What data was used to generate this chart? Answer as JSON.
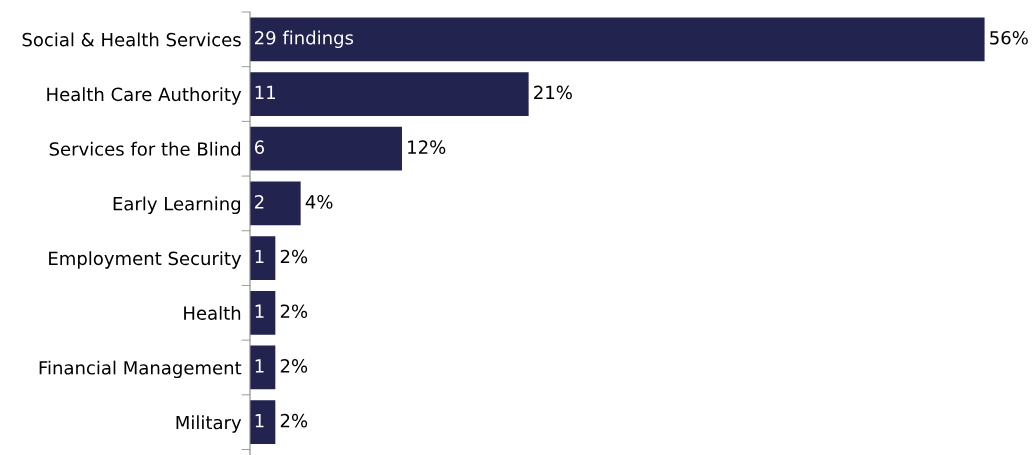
{
  "chart_data": {
    "type": "bar",
    "orientation": "horizontal",
    "categories": [
      "Social & Health Services",
      "Health Care Authority",
      "Services for the Blind",
      "Early Learning",
      "Employment Security",
      "Health",
      "Financial Management",
      "Military"
    ],
    "values": [
      29,
      11,
      6,
      2,
      1,
      1,
      1,
      1
    ],
    "color": "#22234f",
    "value_labels": [
      "29 findings",
      "11",
      "6",
      "2",
      "1",
      "1",
      "1",
      "1"
    ],
    "annotations": [
      {
        "text": "56%",
        "x": 29,
        "y": "Social & Health Services"
      },
      {
        "text": "21%",
        "x": 11,
        "y": "Health Care Authority"
      },
      {
        "text": "12%",
        "x": 6,
        "y": "Services for the Blind"
      },
      {
        "text": "4%",
        "x": 2,
        "y": "Early Learning"
      },
      {
        "text": "2%",
        "x": 1,
        "y": "Employment Security"
      },
      {
        "text": "2%",
        "x": 1,
        "y": "Health"
      },
      {
        "text": "2%",
        "x": 1,
        "y": "Financial Management"
      },
      {
        "text": "2%",
        "x": 1,
        "y": "Military"
      }
    ],
    "grid": false,
    "legend": false
  }
}
